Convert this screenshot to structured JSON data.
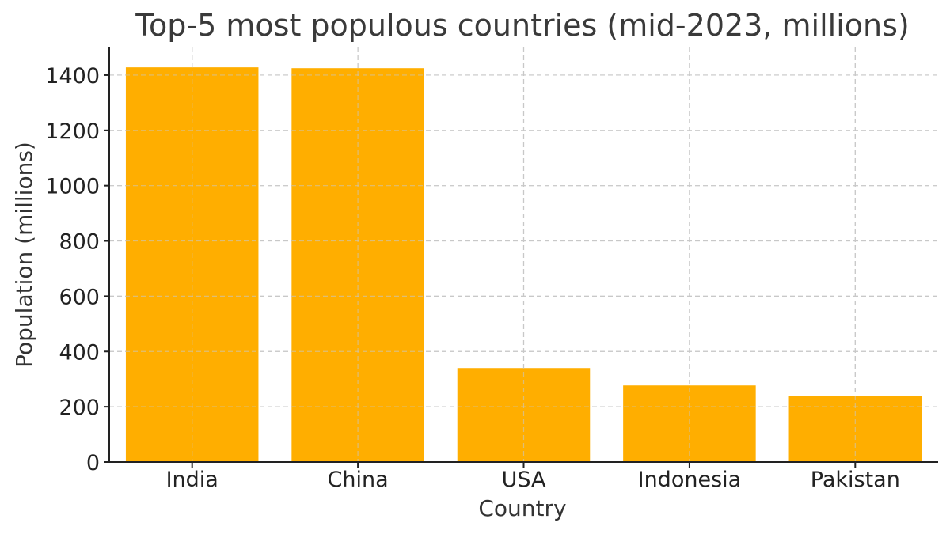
{
  "chart_data": {
    "type": "bar",
    "title": "Top-5 most populous countries (mid-2023, millions)",
    "xlabel": "Country",
    "ylabel": "Population (millions)",
    "categories": [
      "India",
      "China",
      "USA",
      "Indonesia",
      "Pakistan"
    ],
    "values": [
      1428,
      1425,
      340,
      277,
      240
    ],
    "ylim": [
      0,
      1500
    ],
    "yticks": [
      0,
      200,
      400,
      600,
      800,
      1000,
      1200,
      1400
    ],
    "grid": true,
    "bar_color": "#ffae00",
    "legend": null
  }
}
